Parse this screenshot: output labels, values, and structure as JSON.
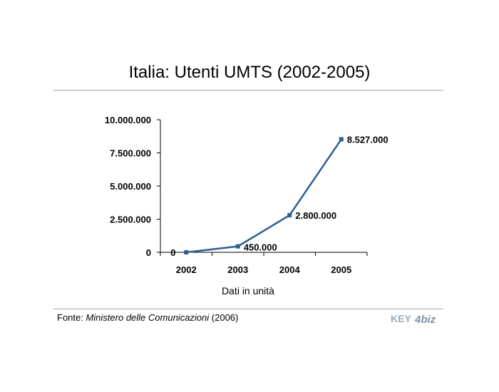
{
  "slide": {
    "title": "Italia: Utenti UMTS (2002-2005)",
    "source_prefix": "Fonte: ",
    "source_name": "Ministero delle Comunicazioni",
    "source_suffix": " (2006)",
    "logo_text_a": "KEY",
    "logo_text_b": "4biz",
    "colors": {
      "line": "#2c5f8f",
      "rule": "#a8a8a8",
      "logo": "#9aaabb"
    }
  },
  "chart_data": {
    "type": "line",
    "categories": [
      "2002",
      "2003",
      "2004",
      "2005"
    ],
    "series": [
      {
        "values": [
          0,
          450000,
          2800000,
          8527000
        ]
      }
    ],
    "data_labels": [
      "0",
      "450.000",
      "2.800.000",
      "8.527.000"
    ],
    "y_ticks": [
      {
        "value": 0,
        "label": "0"
      },
      {
        "value": 2500000,
        "label": "2.500.000"
      },
      {
        "value": 5000000,
        "label": "5.000.000"
      },
      {
        "value": 7500000,
        "label": "7.500.000"
      },
      {
        "value": 10000000,
        "label": "10.000.000"
      }
    ],
    "ylim": [
      0,
      10000000
    ],
    "xlabel": "Dati in unità",
    "ylabel": "",
    "grid": false,
    "legend": "none"
  }
}
